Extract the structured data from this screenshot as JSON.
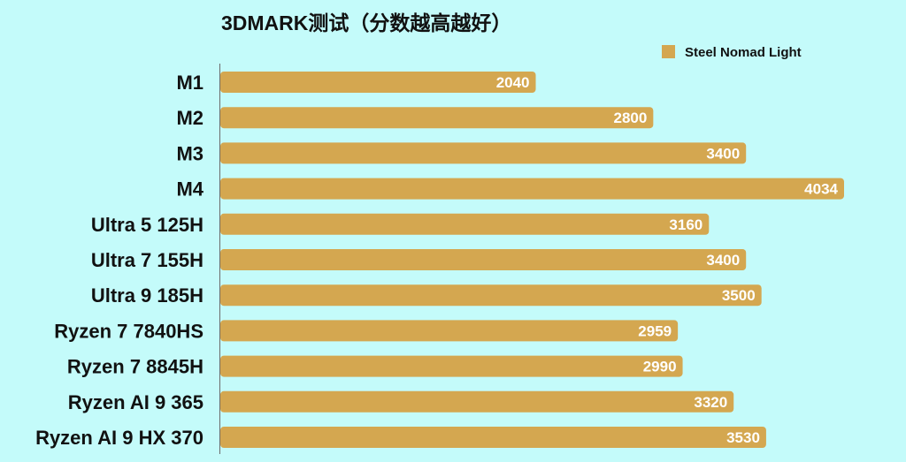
{
  "chart_data": {
    "type": "bar",
    "orientation": "horizontal",
    "title": "3DMARK测试（分数越高越好）",
    "categories": [
      "M1",
      "M2",
      "M3",
      "M4",
      "Ultra 5 125H",
      "Ultra 7 155H",
      "Ultra 9 185H",
      "Ryzen 7 7840HS",
      "Ryzen 7 8845H",
      "Ryzen AI 9 365",
      "Ryzen AI 9 HX 370"
    ],
    "series": [
      {
        "name": "Steel Nomad Light",
        "color": "#d4a750",
        "values": [
          2040,
          2800,
          3400,
          4034,
          3160,
          3400,
          3500,
          2959,
          2990,
          3320,
          3530
        ]
      }
    ],
    "data_labels": [
      "2040",
      "2800",
      "3400",
      "4034",
      "3160",
      "3400",
      "3500",
      "2959",
      "2990",
      "3320",
      "3530"
    ],
    "xlim": [
      0,
      4034
    ],
    "legend_position": "top-right",
    "grid": false,
    "background_color": "#c4fbfa"
  }
}
